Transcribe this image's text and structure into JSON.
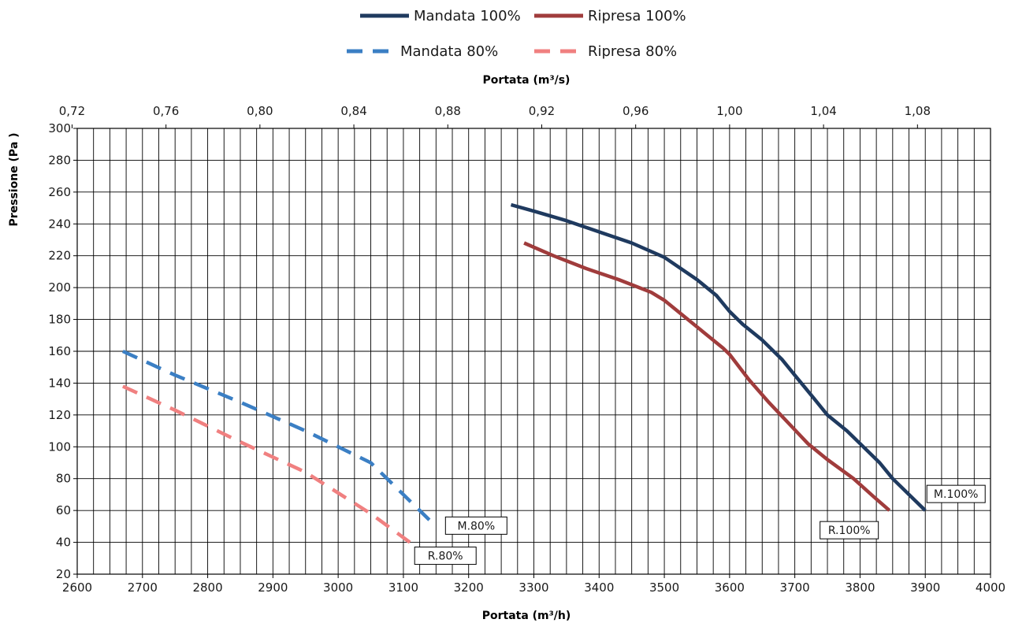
{
  "chart_data": {
    "type": "line",
    "title": "",
    "xlabel": "Portata (m³/h)",
    "x2label": "Portata (m³/s)",
    "ylabel": "Pressione  (Pa )",
    "xlim": [
      2600,
      4000
    ],
    "x2lim": [
      0.7222,
      1.1111
    ],
    "ylim": [
      20,
      300
    ],
    "grid": true,
    "legend_position": "top-center",
    "x_ticks": [
      "2600",
      "2700",
      "2800",
      "2900",
      "3000",
      "3100",
      "3200",
      "3300",
      "3400",
      "3500",
      "3600",
      "3700",
      "3800",
      "3900",
      "4000"
    ],
    "x2_ticks": [
      "0,72",
      "0,76",
      "0,80",
      "0,84",
      "0,88",
      "0,92",
      "0,96",
      "1,00",
      "1,04",
      "1,08"
    ],
    "y_ticks": [
      "20",
      "40",
      "60",
      "80",
      "100",
      "120",
      "140",
      "160",
      "180",
      "200",
      "220",
      "240",
      "260",
      "280",
      "300"
    ],
    "series": [
      {
        "name": "Mandata 100%",
        "color": "#1f3a5f",
        "dash": "solid",
        "x": [
          3265,
          3300,
          3350,
          3400,
          3450,
          3500,
          3550,
          3580,
          3600,
          3620,
          3650,
          3680,
          3700,
          3730,
          3750,
          3780,
          3800,
          3830,
          3850,
          3880,
          3900
        ],
        "y": [
          252,
          248,
          242,
          235,
          228,
          219,
          205,
          195,
          185,
          177,
          167,
          155,
          145,
          130,
          120,
          110,
          102,
          90,
          80,
          68,
          60
        ]
      },
      {
        "name": "Ripresa 100%",
        "color": "#a03c3c",
        "dash": "solid",
        "x": [
          3285,
          3330,
          3380,
          3430,
          3480,
          3500,
          3530,
          3560,
          3590,
          3600,
          3630,
          3660,
          3690,
          3720,
          3750,
          3790,
          3820,
          3845
        ],
        "y": [
          228,
          220,
          212,
          205,
          197,
          192,
          182,
          172,
          162,
          158,
          142,
          128,
          115,
          102,
          92,
          80,
          69,
          60
        ]
      },
      {
        "name": "Mandata 80%",
        "color": "#3b7fc4",
        "dash": "dashed",
        "x": [
          2670,
          2750,
          2850,
          2950,
          3050,
          3150
        ],
        "y": [
          160,
          145,
          128,
          110,
          90,
          50
        ]
      },
      {
        "name": "Ripresa 80%",
        "color": "#f08080",
        "dash": "dashed",
        "x": [
          2670,
          2750,
          2850,
          2950,
          3050,
          3110
        ],
        "y": [
          138,
          123,
          103,
          84,
          58,
          40
        ]
      }
    ],
    "annotations": [
      {
        "text": "M.100%",
        "x": 3900,
        "y": 60
      },
      {
        "text": "R.100%",
        "x": 3845,
        "y": 60
      },
      {
        "text": "M.80%",
        "x": 3150,
        "y": 50
      },
      {
        "text": "R.80%",
        "x": 3110,
        "y": 40
      }
    ]
  }
}
